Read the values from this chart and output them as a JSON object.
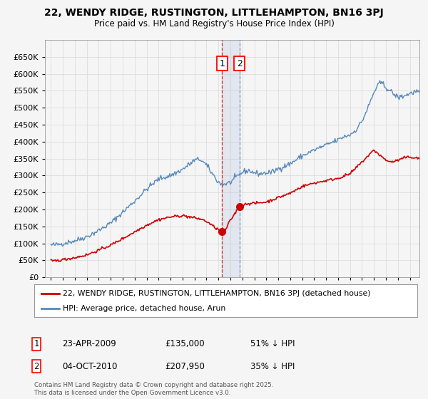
{
  "title_line1": "22, WENDY RIDGE, RUSTINGTON, LITTLEHAMPTON, BN16 3PJ",
  "title_line2": "Price paid vs. HM Land Registry's House Price Index (HPI)",
  "legend_label_red": "22, WENDY RIDGE, RUSTINGTON, LITTLEHAMPTON, BN16 3PJ (detached house)",
  "legend_label_blue": "HPI: Average price, detached house, Arun",
  "annotation1_date": "23-APR-2009",
  "annotation1_price": "£135,000",
  "annotation1_pct": "51% ↓ HPI",
  "annotation2_date": "04-OCT-2010",
  "annotation2_price": "£207,950",
  "annotation2_pct": "35% ↓ HPI",
  "footer": "Contains HM Land Registry data © Crown copyright and database right 2025.\nThis data is licensed under the Open Government Licence v3.0.",
  "vline1_x": 2009.31,
  "vline2_x": 2010.75,
  "marker1_x": 2009.31,
  "marker1_y": 135000,
  "marker2_x": 2010.75,
  "marker2_y": 207950,
  "ylim": [
    0,
    700000
  ],
  "xlim": [
    1994.5,
    2025.8
  ],
  "yticks": [
    0,
    50000,
    100000,
    150000,
    200000,
    250000,
    300000,
    350000,
    400000,
    450000,
    500000,
    550000,
    600000,
    650000
  ],
  "background_color": "#f5f5f5",
  "plot_bg_color": "#f5f5f5",
  "grid_color": "#dddddd",
  "red_color": "#cc0000",
  "blue_color": "#5588bb",
  "shade_color": "#aabbdd"
}
